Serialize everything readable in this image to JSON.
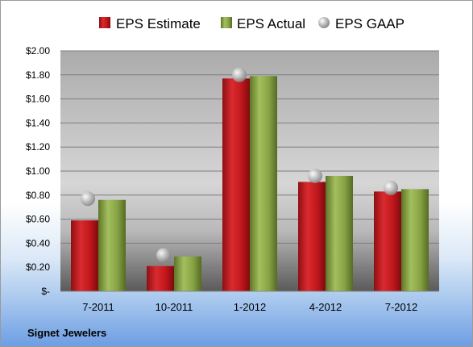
{
  "chart_data": {
    "type": "bar",
    "categories": [
      "7-2011",
      "10-2011",
      "1-2012",
      "4-2012",
      "7-2012"
    ],
    "series": [
      {
        "name": "EPS Estimate",
        "kind": "bar",
        "color": "#c0161b",
        "values": [
          0.59,
          0.21,
          1.77,
          0.91,
          0.83
        ]
      },
      {
        "name": "EPS Actual",
        "kind": "bar",
        "color": "#7f9b3d",
        "values": [
          0.76,
          0.29,
          1.79,
          0.96,
          0.85
        ]
      },
      {
        "name": "EPS GAAP",
        "kind": "marker",
        "color": "#a8a8a8",
        "values": [
          0.77,
          0.3,
          1.8,
          0.96,
          0.86
        ]
      }
    ],
    "ylim": [
      0,
      2.0
    ],
    "yticks": [
      0,
      0.2,
      0.4,
      0.6,
      0.8,
      1.0,
      1.2,
      1.4,
      1.6,
      1.8,
      2.0
    ],
    "ytick_labels": [
      "$-",
      "$0.20",
      "$0.40",
      "$0.60",
      "$0.80",
      "$1.00",
      "$1.20",
      "$1.40",
      "$1.60",
      "$1.80",
      "$2.00"
    ],
    "grid": true,
    "legend_position": "top"
  },
  "company": "Signet Jewelers"
}
